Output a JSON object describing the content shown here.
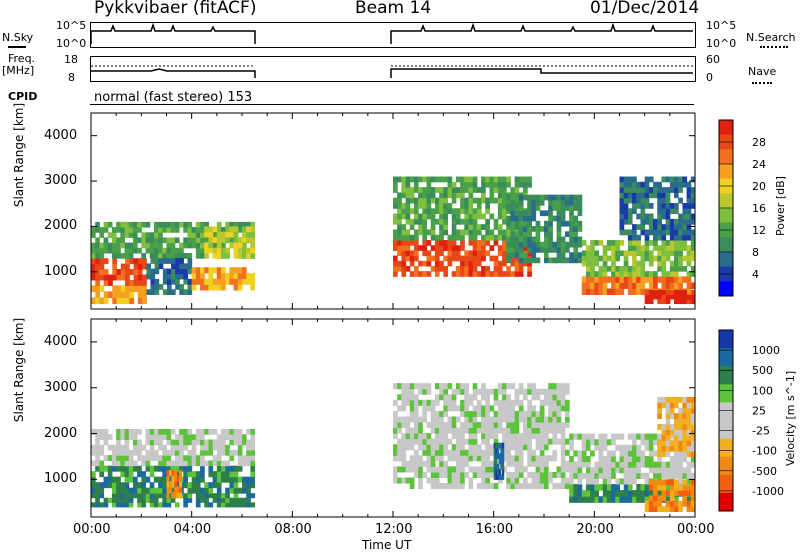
{
  "header": {
    "title": "Pykkvibaer (fitACF)",
    "beam": "Beam 14",
    "date": "01/Dec/2014"
  },
  "side_labels": {
    "nsky": "N.Sky",
    "freq": "Freq.",
    "freq_unit": "[MHz]",
    "cpid": "CPID",
    "nsearch": "N.Search",
    "nave": "Nave"
  },
  "small_axes": {
    "nsky_ticks": [
      "10^5",
      "10^0"
    ],
    "nsearch_ticks": [
      "10^5",
      "10^0"
    ],
    "freq_ticks": [
      "18",
      "8"
    ],
    "nave_ticks": [
      "60",
      "0"
    ]
  },
  "cpid_text": "normal (fast stereo) 153",
  "colors": {
    "power_scale": [
      "#0000ff",
      "#1a3aa8",
      "#2a6c8c",
      "#3a8c5a",
      "#4aa04a",
      "#7fbf3f",
      "#b8c830",
      "#f0d020",
      "#f5a020",
      "#f07020",
      "#e84818",
      "#e02010"
    ],
    "velocity_scale": [
      "#1438a8",
      "#1a6aa0",
      "#2e7f4a",
      "#5cc33a",
      "#c8c8c8",
      "#c8c8c8",
      "#f0b020",
      "#f08a14",
      "#f06010",
      "#e00000"
    ],
    "line": "#000000",
    "grid": "#000000"
  },
  "chart_data": [
    {
      "type": "heatmap",
      "title": "",
      "xlabel": "Time UT",
      "ylabel": "Slant Range [km]",
      "ylim": [
        180,
        4500
      ],
      "y_ticks": [
        1000,
        2000,
        3000,
        4000
      ],
      "x_ticks": [
        "00:00",
        "04:00",
        "08:00",
        "12:00",
        "16:00",
        "20:00",
        "00:00"
      ],
      "colorbar": {
        "label": "Power [dB]",
        "ticks": [
          "4",
          "8",
          "12",
          "16",
          "20",
          "24",
          "28"
        ],
        "range": [
          0,
          30
        ]
      },
      "data_gaps": [
        [
          6.5,
          12.0
        ]
      ],
      "bands": [
        {
          "t0": 0.0,
          "t1": 2.2,
          "r0": 300,
          "r1": 700,
          "value": 22
        },
        {
          "t0": 0.0,
          "t1": 2.2,
          "r0": 700,
          "r1": 1300,
          "value": 25
        },
        {
          "t0": 0.0,
          "t1": 6.5,
          "r0": 1300,
          "r1": 2100,
          "value": 10
        },
        {
          "t0": 2.2,
          "t1": 4.0,
          "r0": 500,
          "r1": 1300,
          "value": 6
        },
        {
          "t0": 4.0,
          "t1": 6.5,
          "r0": 600,
          "r1": 1100,
          "value": 20
        },
        {
          "t0": 4.5,
          "t1": 6.5,
          "r0": 1300,
          "r1": 2000,
          "value": 17
        },
        {
          "t0": 12.0,
          "t1": 17.5,
          "r0": 900,
          "r1": 1700,
          "value": 26
        },
        {
          "t0": 12.0,
          "t1": 17.5,
          "r0": 1700,
          "r1": 3100,
          "value": 12
        },
        {
          "t0": 16.5,
          "t1": 19.5,
          "r0": 1200,
          "r1": 2700,
          "value": 8
        },
        {
          "t0": 19.5,
          "t1": 24.0,
          "r0": 500,
          "r1": 900,
          "value": 24
        },
        {
          "t0": 19.5,
          "t1": 24.0,
          "r0": 900,
          "r1": 1700,
          "value": 14
        },
        {
          "t0": 21.0,
          "t1": 24.0,
          "r0": 1700,
          "r1": 3100,
          "value": 7
        },
        {
          "t0": 22.0,
          "t1": 24.0,
          "r0": 300,
          "r1": 600,
          "value": 28
        }
      ]
    },
    {
      "type": "heatmap",
      "title": "",
      "xlabel": "Time UT",
      "ylabel": "Slant Range [km]",
      "ylim": [
        180,
        4500
      ],
      "y_ticks": [
        1000,
        2000,
        3000,
        4000
      ],
      "x_ticks": [
        "00:00",
        "04:00",
        "08:00",
        "12:00",
        "16:00",
        "20:00",
        "00:00"
      ],
      "colorbar": {
        "label": "Velocity [m s^-1]",
        "ticks": [
          "1000",
          "500",
          "100",
          "25",
          "-25",
          "-100",
          "-500",
          "-1000"
        ],
        "range": [
          -1000,
          1000
        ]
      },
      "data_gaps": [
        [
          6.5,
          12.0
        ]
      ],
      "bands": [
        {
          "t0": 0.0,
          "t1": 6.5,
          "r0": 400,
          "r1": 700,
          "value": 300
        },
        {
          "t0": 0.0,
          "t1": 6.5,
          "r0": 700,
          "r1": 1300,
          "value": 120
        },
        {
          "t0": 0.0,
          "t1": 6.5,
          "r0": 1300,
          "r1": 2100,
          "value": 10
        },
        {
          "t0": 3.0,
          "t1": 3.6,
          "r0": 600,
          "r1": 1200,
          "value": -200
        },
        {
          "t0": 12.0,
          "t1": 19.0,
          "r0": 800,
          "r1": 3100,
          "value": 0
        },
        {
          "t0": 16.0,
          "t1": 16.4,
          "r0": 1000,
          "r1": 1800,
          "value": 800
        },
        {
          "t0": 19.0,
          "t1": 24.0,
          "r0": 500,
          "r1": 900,
          "value": 400
        },
        {
          "t0": 19.0,
          "t1": 24.0,
          "r0": 900,
          "r1": 2000,
          "value": 0
        },
        {
          "t0": 22.0,
          "t1": 24.0,
          "r0": 300,
          "r1": 1000,
          "value": -300
        },
        {
          "t0": 22.5,
          "t1": 24.0,
          "r0": 1500,
          "r1": 2800,
          "value": -80
        }
      ]
    }
  ]
}
